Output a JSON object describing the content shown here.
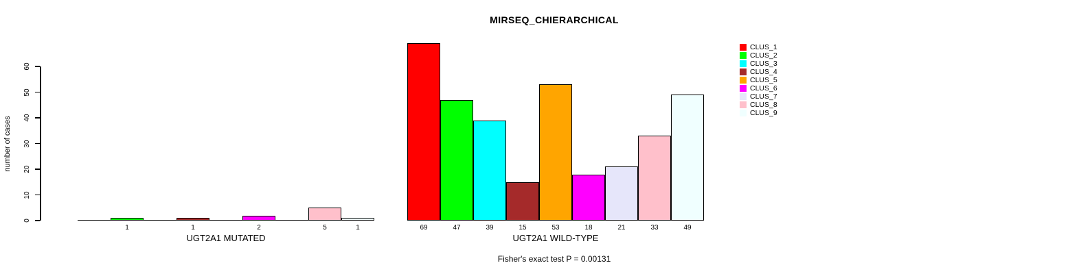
{
  "chart_data": {
    "type": "bar",
    "title": "MIRSEQ_CHIERARCHICAL",
    "ylabel": "number of cases",
    "yticks": [
      0,
      10,
      20,
      30,
      40,
      50,
      60
    ],
    "ylim": [
      0,
      69
    ],
    "grid": false,
    "legend_position": "right",
    "clusters": [
      {
        "name": "CLUS_1",
        "color": "#FF0000"
      },
      {
        "name": "CLUS_2",
        "color": "#00FF00"
      },
      {
        "name": "CLUS_3",
        "color": "#00FFFF"
      },
      {
        "name": "CLUS_4",
        "color": "#A52A2A"
      },
      {
        "name": "CLUS_5",
        "color": "#FFA500"
      },
      {
        "name": "CLUS_6",
        "color": "#FF00FF"
      },
      {
        "name": "CLUS_7",
        "color": "#E6E6FA"
      },
      {
        "name": "CLUS_8",
        "color": "#FFC0CB"
      },
      {
        "name": "CLUS_9",
        "color": "#F0FFFF"
      }
    ],
    "groups": [
      {
        "label": "UGT2A1 MUTATED",
        "values": [
          0,
          1,
          0,
          1,
          0,
          2,
          0,
          5,
          1
        ]
      },
      {
        "label": "UGT2A1 WILD-TYPE",
        "values": [
          69,
          47,
          39,
          15,
          53,
          18,
          21,
          33,
          49
        ]
      }
    ],
    "footnote": "Fisher's exact test P = 0.00131",
    "axis_color": "#000000",
    "background_color": "#FFFFFF"
  }
}
